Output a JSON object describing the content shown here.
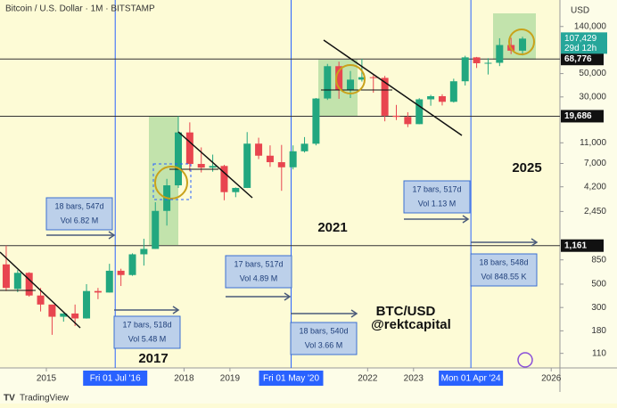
{
  "header": {
    "symbol": "Bitcoin / U.S. Dollar · 1M · BITSTAMP",
    "currency": "USD"
  },
  "footer": {
    "brand": "TradingView"
  },
  "chart_data": {
    "type": "candlestick",
    "log_scale": true,
    "colors": {
      "up": "#22a77f",
      "down": "#e8454f"
    },
    "x": [
      2014.125,
      2014.375,
      2014.625,
      2014.875,
      2015.125,
      2015.375,
      2015.625,
      2015.875,
      2016.125,
      2016.375,
      2016.625,
      2016.875,
      2017.125,
      2017.375,
      2017.625,
      2017.875,
      2018.125,
      2018.375,
      2018.625,
      2018.875,
      2019.125,
      2019.375,
      2019.625,
      2019.875,
      2020.125,
      2020.375,
      2020.625,
      2020.875,
      2021.125,
      2021.375,
      2021.625,
      2021.875,
      2022.125,
      2022.375,
      2022.625,
      2022.875,
      2023.125,
      2023.375,
      2023.625,
      2023.875,
      2024.125,
      2024.375,
      2024.625,
      2024.875,
      2025.125,
      2025.375
    ],
    "open": [
      770,
      450,
      640,
      390,
      320,
      245,
      263,
      236,
      430,
      416,
      670,
      610,
      960,
      1080,
      2480,
      4340,
      13800,
      6930,
      6390,
      6630,
      3740,
      4100,
      10800,
      8300,
      7200,
      6440,
      9140,
      10780,
      28990,
      58800,
      35050,
      43800,
      46200,
      45500,
      19900,
      19400,
      16550,
      28470,
      30480,
      26970,
      42260,
      71300,
      62700,
      63300,
      93400,
      82500
    ],
    "high": [
      1160,
      680,
      650,
      460,
      320,
      265,
      320,
      500,
      460,
      780,
      700,
      980,
      1350,
      3000,
      5000,
      19700,
      17200,
      9950,
      8500,
      6800,
      4140,
      13900,
      12300,
      10400,
      10500,
      10400,
      12470,
      29300,
      61800,
      64850,
      52900,
      69000,
      48200,
      47500,
      25200,
      21480,
      29200,
      31400,
      31800,
      44700,
      73800,
      72000,
      70000,
      108300,
      109500,
      111900
    ],
    "low": [
      430,
      420,
      380,
      275,
      165,
      220,
      200,
      235,
      360,
      415,
      480,
      600,
      750,
      1080,
      1800,
      4100,
      5900,
      5750,
      5850,
      3130,
      3350,
      4090,
      7700,
      6500,
      3850,
      6150,
      8900,
      10400,
      28100,
      28800,
      29300,
      42000,
      32900,
      17600,
      18100,
      15500,
      16500,
      24750,
      24900,
      26500,
      38500,
      56500,
      49000,
      58900,
      76600,
      74400
    ],
    "close": [
      460,
      640,
      390,
      320,
      245,
      263,
      236,
      430,
      416,
      670,
      610,
      960,
      1080,
      2480,
      4340,
      13800,
      6930,
      6390,
      6630,
      3740,
      4100,
      10800,
      8300,
      7200,
      6440,
      9140,
      10780,
      28990,
      58800,
      35050,
      43800,
      46200,
      45500,
      19900,
      19400,
      16550,
      28470,
      30480,
      26970,
      42260,
      71300,
      62700,
      63300,
      93400,
      82500,
      107429
    ],
    "xlim": [
      2013.99,
      2026.19
    ],
    "ylim": [
      80,
      250000
    ],
    "xticks": [
      2015,
      2018,
      2019,
      2022,
      2023,
      2026
    ],
    "yticks": [
      {
        "value": 140000,
        "label": "140,000"
      },
      {
        "value": 50000,
        "label": "50,000"
      },
      {
        "value": 30000,
        "label": "30,000"
      },
      {
        "value": 11000,
        "label": "11,000"
      },
      {
        "value": 7000,
        "label": "7,000"
      },
      {
        "value": 4200,
        "label": "4,200"
      },
      {
        "value": 2450,
        "label": "2,450"
      },
      850,
      500,
      300,
      180,
      110
    ],
    "price_lines": [
      {
        "value": 68776,
        "label": "68,776"
      },
      {
        "value": 19686,
        "label": "19,686"
      },
      {
        "value": 1161,
        "label": "1,161"
      }
    ],
    "last_price": {
      "value": 107429,
      "label": "107,429",
      "countdown": "29d 12h"
    },
    "date_markers": [
      {
        "x": 2016.5,
        "label": "Fri 01 Jul '16"
      },
      {
        "x": 2020.333,
        "label": "Fri 01 May '20"
      },
      {
        "x": 2024.25,
        "label": "Mon 01 Apr '24"
      }
    ],
    "measures": [
      {
        "bars": "18 bars, 547d",
        "vol": "Vol 6.82 M"
      },
      {
        "bars": "17 bars, 518d",
        "vol": "Vol 5.48 M"
      },
      {
        "bars": "17 bars, 517d",
        "vol": "Vol 4.89 M"
      },
      {
        "bars": "18 bars, 540d",
        "vol": "Vol 3.66 M"
      },
      {
        "bars": "17 bars, 517d",
        "vol": "Vol 1.13 M"
      },
      {
        "bars": "18 bars, 548d",
        "vol": "Vol 848.55 K"
      }
    ],
    "annotations": [
      "2017",
      "2021",
      "2025",
      "BTC/USD",
      "@rektcapital"
    ]
  }
}
